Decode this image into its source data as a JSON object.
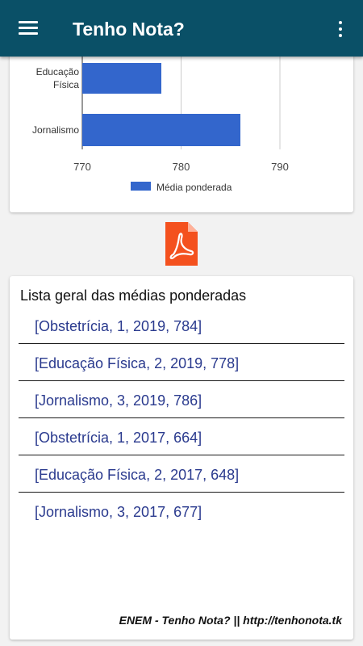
{
  "app": {
    "title": "Tenho Nota?"
  },
  "icons": {
    "menu": "menu-icon",
    "overflow": "more-vert-icon",
    "pdf": "pdf-icon"
  },
  "colors": {
    "appbar": "#0a5067",
    "bar": "#3366cc",
    "pdf": "#f4511e",
    "link": "#2a3a8e"
  },
  "chart_data": {
    "type": "bar",
    "orientation": "horizontal",
    "categories": [
      "Educação Física",
      "Jornalismo"
    ],
    "category_lines": [
      [
        "Educação",
        "Física"
      ],
      [
        "Jornalismo"
      ]
    ],
    "series": [
      {
        "name": "Média ponderada",
        "values": [
          778,
          786
        ]
      }
    ],
    "xlim": [
      770,
      790
    ],
    "xticks": [
      "770",
      "780",
      "790"
    ],
    "grid": true,
    "legend": "bottom"
  },
  "list": {
    "heading": "Lista geral das médias ponderadas",
    "items": [
      "[Obstetrícia, 1, 2019, 784]",
      "[Educação Física, 2, 2019, 778]",
      "[Jornalismo, 3, 2019, 786]",
      "[Obstetrícia, 1, 2017, 664]",
      "[Educação Física, 2, 2017, 648]",
      "[Jornalismo, 3, 2017, 677]"
    ]
  },
  "footer": "ENEM - Tenho Nota? || http://tenhonota.tk"
}
